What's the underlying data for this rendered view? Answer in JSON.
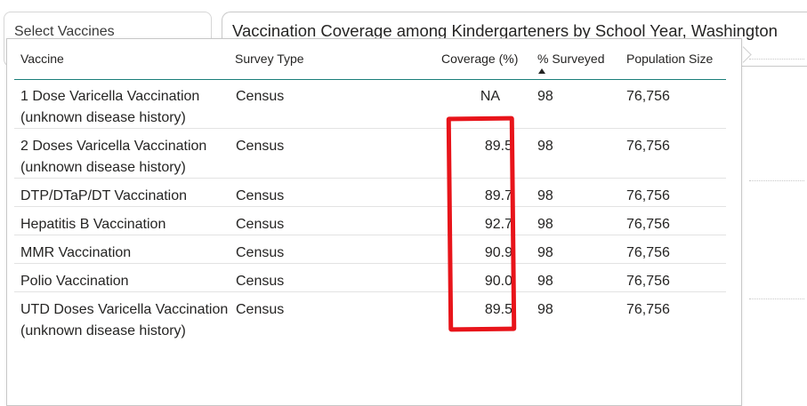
{
  "slicer": {
    "title": "Select Vaccines"
  },
  "report": {
    "title": "Vaccination Coverage among Kindergarteners by School Year, Washington"
  },
  "table": {
    "headers": {
      "vaccine": "Vaccine",
      "survey_type": "Survey Type",
      "coverage": "Coverage (%)",
      "surveyed": "% Surveyed",
      "population": "Population Size"
    },
    "sorted_column": "% Surveyed",
    "rows": [
      {
        "vaccine": "1 Dose Varicella Vaccination (unknown disease history)",
        "survey_type": "Census",
        "coverage": "NA",
        "surveyed": "98",
        "population": "76,756"
      },
      {
        "vaccine": "2 Doses Varicella Vaccination (unknown disease history)",
        "survey_type": "Census",
        "coverage": "89.5",
        "surveyed": "98",
        "population": "76,756"
      },
      {
        "vaccine": "DTP/DTaP/DT Vaccination",
        "survey_type": "Census",
        "coverage": "89.7",
        "surveyed": "98",
        "population": "76,756"
      },
      {
        "vaccine": "Hepatitis B Vaccination",
        "survey_type": "Census",
        "coverage": "92.7",
        "surveyed": "98",
        "population": "76,756"
      },
      {
        "vaccine": "MMR Vaccination",
        "survey_type": "Census",
        "coverage": "90.9",
        "surveyed": "98",
        "population": "76,756"
      },
      {
        "vaccine": "Polio Vaccination",
        "survey_type": "Census",
        "coverage": "90.0",
        "surveyed": "98",
        "population": "76,756"
      },
      {
        "vaccine": "UTD Doses Varicella Vaccination (unknown disease history)",
        "survey_type": "Census",
        "coverage": "89.5",
        "surveyed": "98",
        "population": "76,756"
      }
    ]
  },
  "colors": {
    "highlight": "#e8141a",
    "header_rule": "#1b7e7a"
  }
}
